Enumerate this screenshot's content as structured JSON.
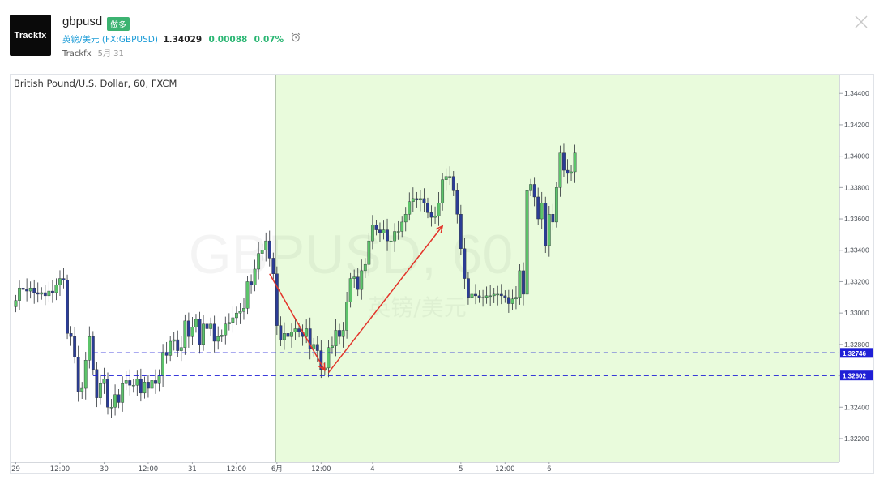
{
  "header": {
    "logo_text": "Trackfx",
    "title": "gbpusd",
    "badge": "做多",
    "ticker_name": "英镑/美元",
    "ticker_symbol": "(FX:GBPUSD)",
    "price": "1.34029",
    "change": "0.00088",
    "change_pct": "0.07%",
    "author": "Trackfx",
    "date": "5月 31"
  },
  "chart_data": {
    "type": "candlestick",
    "title": "British Pound/U.S. Dollar, 60, FXCM",
    "watermark_line1": "GBPUSD, 60",
    "watermark_line2": "英镑/美元",
    "ylim": [
      1.3205,
      1.3452
    ],
    "y_ticks": [
      "1.34400",
      "1.34200",
      "1.34000",
      "1.33800",
      "1.33600",
      "1.33400",
      "1.33200",
      "1.33000",
      "1.32800",
      "1.32600",
      "1.32400",
      "1.32200"
    ],
    "x_ticks": [
      {
        "label": "29",
        "pos": 0
      },
      {
        "label": "12:00",
        "pos": 12
      },
      {
        "label": "30",
        "pos": 24
      },
      {
        "label": "12:00",
        "pos": 36
      },
      {
        "label": "31",
        "pos": 48
      },
      {
        "label": "12:00",
        "pos": 60
      },
      {
        "label": "6月",
        "pos": 71
      },
      {
        "label": "12:00",
        "pos": 83
      },
      {
        "label": "4",
        "pos": 97
      },
      {
        "label": "5",
        "pos": 121
      },
      {
        "label": "12:00",
        "pos": 133
      },
      {
        "label": "6",
        "pos": 145
      }
    ],
    "horizontal_lines": [
      {
        "value": 1.32746,
        "label": "1.32746",
        "color": "#1f1fd6"
      },
      {
        "value": 1.32602,
        "label": "1.32602",
        "color": "#1f1fd6"
      }
    ],
    "highlight_start_index": 71,
    "arrows": [
      {
        "from": {
          "i": 69,
          "y": 1.3325
        },
        "to": {
          "i": 84,
          "y": 1.32635
        }
      },
      {
        "from": {
          "i": 85,
          "y": 1.3262
        },
        "to": {
          "i": 116,
          "y": 1.33555
        }
      }
    ],
    "close_path": [
      1.3308,
      1.3316,
      1.3315,
      1.3314,
      1.3316,
      1.3313,
      1.3312,
      1.3313,
      1.3311,
      1.3314,
      1.3313,
      1.3318,
      1.3322,
      1.3321,
      1.3287,
      1.3285,
      1.3272,
      1.325,
      1.3252,
      1.327,
      1.3285,
      1.3264,
      1.3246,
      1.3255,
      1.3258,
      1.324,
      1.324,
      1.3248,
      1.3243,
      1.3255,
      1.3257,
      1.3254,
      1.3254,
      1.3258,
      1.3249,
      1.3256,
      1.3252,
      1.3257,
      1.3255,
      1.326,
      1.3275,
      1.3273,
      1.3282,
      1.3283,
      1.3276,
      1.3278,
      1.3295,
      1.3285,
      1.3291,
      1.3296,
      1.328,
      1.3293,
      1.329,
      1.3293,
      1.3282,
      1.3285,
      1.3286,
      1.3293,
      1.3294,
      1.3297,
      1.33,
      1.3301,
      1.3303,
      1.332,
      1.3318,
      1.3328,
      1.3338,
      1.334,
      1.3346,
      1.3335,
      1.3325,
      1.3292,
      1.3283,
      1.3287,
      1.3285,
      1.3288,
      1.329,
      1.3288,
      1.3285,
      1.329,
      1.3277,
      1.328,
      1.3276,
      1.3264,
      1.3265,
      1.3278,
      1.3279,
      1.3289,
      1.3285,
      1.3289,
      1.3307,
      1.3322,
      1.3323,
      1.3315,
      1.3327,
      1.3331,
      1.3346,
      1.3356,
      1.3353,
      1.3351,
      1.3353,
      1.3346,
      1.3346,
      1.3352,
      1.3352,
      1.3358,
      1.3363,
      1.3371,
      1.3373,
      1.3372,
      1.3373,
      1.337,
      1.3364,
      1.3361,
      1.3362,
      1.337,
      1.3385,
      1.3387,
      1.3387,
      1.3378,
      1.3363,
      1.3341,
      1.3322,
      1.331,
      1.3312,
      1.3311,
      1.331,
      1.331,
      1.3311,
      1.3311,
      1.3312,
      1.3312,
      1.3311,
      1.331,
      1.3306,
      1.3309,
      1.331,
      1.3327,
      1.3312,
      1.3378,
      1.3382,
      1.3374,
      1.336,
      1.337,
      1.3343,
      1.3363,
      1.3358,
      1.338,
      1.3402,
      1.3391,
      1.3389,
      1.339,
      1.3402
    ]
  }
}
